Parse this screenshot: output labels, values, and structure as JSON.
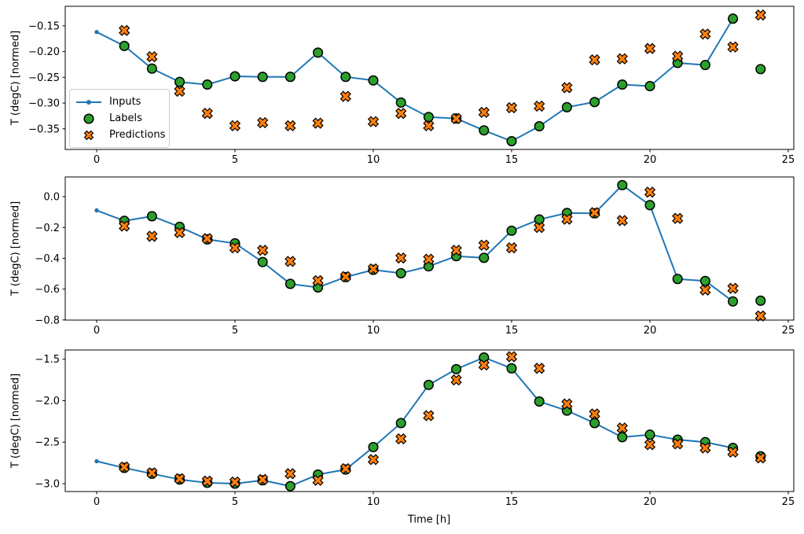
{
  "figure": {
    "xlabel": "Time [h]",
    "ylabel": "T (degC) [normed]",
    "colors": {
      "inputs": "#1f77b4",
      "labels": "#2ca02c",
      "predictions": "#ff7f0e",
      "marker_edge": "#000000",
      "legend_border": "#cccccc"
    },
    "legend": {
      "position": "upper-left-area of subplot 1",
      "items": [
        {
          "label": "Inputs",
          "marker": "line-with-dot"
        },
        {
          "label": "Labels",
          "marker": "filled-circle"
        },
        {
          "label": "Predictions",
          "marker": "filled-x"
        }
      ]
    }
  },
  "chart_data": [
    {
      "type": "line",
      "title": "",
      "xlabel": "",
      "ylabel": "T (degC) [normed]",
      "xlim": [
        -1.136,
        25.2
      ],
      "ylim": [
        -0.39,
        -0.112
      ],
      "grid": false,
      "xticks": [
        0,
        5,
        10,
        15,
        20,
        25
      ],
      "xtick_labels": [
        "0",
        "5",
        "10",
        "15",
        "20",
        "25"
      ],
      "yticks": [
        -0.15,
        -0.2,
        -0.25,
        -0.3,
        -0.35
      ],
      "ytick_labels": [
        "−0.15",
        "−0.20",
        "−0.25",
        "−0.30",
        "−0.35"
      ],
      "legend": [
        "Inputs",
        "Labels",
        "Predictions"
      ],
      "series": [
        {
          "name": "Inputs",
          "type": "line",
          "marker": "dot",
          "color": "#1f77b4",
          "x": [
            0,
            1,
            2,
            3,
            4,
            5,
            6,
            7,
            8,
            9,
            10,
            11,
            12,
            13,
            14,
            15,
            16,
            17,
            18,
            19,
            20,
            21,
            22,
            23
          ],
          "y": [
            -0.162,
            -0.189,
            -0.233,
            -0.259,
            -0.264,
            -0.248,
            -0.249,
            -0.249,
            -0.202,
            -0.249,
            -0.256,
            -0.299,
            -0.327,
            -0.33,
            -0.353,
            -0.374,
            -0.345,
            -0.308,
            -0.298,
            -0.264,
            -0.267,
            -0.222,
            -0.226,
            -0.136
          ]
        },
        {
          "name": "Labels",
          "type": "scatter",
          "marker": "circle",
          "color": "#2ca02c",
          "x": [
            1,
            2,
            3,
            4,
            5,
            6,
            7,
            8,
            9,
            10,
            11,
            12,
            13,
            14,
            15,
            16,
            17,
            18,
            19,
            20,
            21,
            22,
            23,
            24
          ],
          "y": [
            -0.189,
            -0.233,
            -0.259,
            -0.264,
            -0.248,
            -0.249,
            -0.249,
            -0.202,
            -0.249,
            -0.256,
            -0.299,
            -0.327,
            -0.33,
            -0.353,
            -0.374,
            -0.345,
            -0.308,
            -0.298,
            -0.264,
            -0.267,
            -0.222,
            -0.226,
            -0.136,
            -0.234
          ]
        },
        {
          "name": "Predictions",
          "type": "scatter",
          "marker": "X",
          "color": "#ff7f0e",
          "x": [
            1,
            2,
            3,
            4,
            5,
            6,
            7,
            8,
            9,
            10,
            11,
            12,
            13,
            14,
            15,
            16,
            17,
            18,
            19,
            20,
            21,
            22,
            23,
            24
          ],
          "y": [
            -0.159,
            -0.21,
            -0.277,
            -0.32,
            -0.344,
            -0.338,
            -0.344,
            -0.339,
            -0.287,
            -0.336,
            -0.32,
            -0.344,
            -0.33,
            -0.318,
            -0.309,
            -0.306,
            -0.27,
            -0.216,
            -0.214,
            -0.194,
            -0.209,
            -0.166,
            -0.191,
            -0.129
          ]
        }
      ]
    },
    {
      "type": "line",
      "title": "",
      "xlabel": "",
      "ylabel": "T (degC) [normed]",
      "xlim": [
        -1.136,
        25.2
      ],
      "ylim": [
        -0.801,
        0.128
      ],
      "grid": false,
      "xticks": [
        0,
        5,
        10,
        15,
        20,
        25
      ],
      "xtick_labels": [
        "0",
        "5",
        "10",
        "15",
        "20",
        "25"
      ],
      "yticks": [
        0.0,
        -0.2,
        -0.4,
        -0.6,
        -0.8
      ],
      "ytick_labels": [
        "0.0",
        "−0.2",
        "−0.4",
        "−0.6",
        "−0.8"
      ],
      "legend": [],
      "series": [
        {
          "name": "Inputs",
          "type": "line",
          "marker": "dot",
          "color": "#1f77b4",
          "x": [
            0,
            1,
            2,
            3,
            4,
            5,
            6,
            7,
            8,
            9,
            10,
            11,
            12,
            13,
            14,
            15,
            16,
            17,
            18,
            19,
            20,
            21,
            22,
            23
          ],
          "y": [
            -0.089,
            -0.157,
            -0.127,
            -0.196,
            -0.277,
            -0.303,
            -0.424,
            -0.566,
            -0.589,
            -0.522,
            -0.475,
            -0.497,
            -0.452,
            -0.386,
            -0.397,
            -0.221,
            -0.148,
            -0.106,
            -0.108,
            0.075,
            -0.055,
            -0.534,
            -0.547,
            -0.68
          ]
        },
        {
          "name": "Labels",
          "type": "scatter",
          "marker": "circle",
          "color": "#2ca02c",
          "x": [
            1,
            2,
            3,
            4,
            5,
            6,
            7,
            8,
            9,
            10,
            11,
            12,
            13,
            14,
            15,
            16,
            17,
            18,
            19,
            20,
            21,
            22,
            23,
            24
          ],
          "y": [
            -0.157,
            -0.127,
            -0.196,
            -0.277,
            -0.303,
            -0.424,
            -0.566,
            -0.589,
            -0.522,
            -0.475,
            -0.497,
            -0.452,
            -0.386,
            -0.397,
            -0.221,
            -0.148,
            -0.106,
            -0.108,
            0.075,
            -0.055,
            -0.534,
            -0.547,
            -0.68,
            -0.675
          ]
        },
        {
          "name": "Predictions",
          "type": "scatter",
          "marker": "X",
          "color": "#ff7f0e",
          "x": [
            1,
            2,
            3,
            4,
            5,
            6,
            7,
            8,
            9,
            10,
            11,
            12,
            13,
            14,
            15,
            16,
            17,
            18,
            19,
            20,
            21,
            22,
            23,
            24
          ],
          "y": [
            -0.191,
            -0.257,
            -0.233,
            -0.272,
            -0.332,
            -0.348,
            -0.42,
            -0.545,
            -0.519,
            -0.469,
            -0.398,
            -0.406,
            -0.348,
            -0.315,
            -0.332,
            -0.2,
            -0.146,
            -0.104,
            -0.155,
            0.029,
            -0.141,
            -0.606,
            -0.595,
            -0.774
          ]
        }
      ]
    },
    {
      "type": "line",
      "title": "",
      "xlabel": "Time [h]",
      "ylabel": "T (degC) [normed]",
      "xlim": [
        -1.136,
        25.2
      ],
      "ylim": [
        -3.095,
        -1.389
      ],
      "grid": false,
      "xticks": [
        0,
        5,
        10,
        15,
        20,
        25
      ],
      "xtick_labels": [
        "0",
        "5",
        "10",
        "15",
        "20",
        "25"
      ],
      "yticks": [
        -1.5,
        -2.0,
        -2.5,
        -3.0
      ],
      "ytick_labels": [
        "−1.5",
        "−2.0",
        "−2.5",
        "−3.0"
      ],
      "legend": [],
      "series": [
        {
          "name": "Inputs",
          "type": "line",
          "marker": "dot",
          "color": "#1f77b4",
          "x": [
            0,
            1,
            2,
            3,
            4,
            5,
            6,
            7,
            8,
            9,
            10,
            11,
            12,
            13,
            14,
            15,
            16,
            17,
            18,
            19,
            20,
            21,
            22,
            23
          ],
          "y": [
            -2.73,
            -2.81,
            -2.88,
            -2.95,
            -2.99,
            -3.0,
            -2.96,
            -3.03,
            -2.89,
            -2.83,
            -2.56,
            -2.27,
            -1.81,
            -1.62,
            -1.48,
            -1.61,
            -2.01,
            -2.12,
            -2.27,
            -2.44,
            -2.41,
            -2.47,
            -2.5,
            -2.57
          ]
        },
        {
          "name": "Labels",
          "type": "scatter",
          "marker": "circle",
          "color": "#2ca02c",
          "x": [
            1,
            2,
            3,
            4,
            5,
            6,
            7,
            8,
            9,
            10,
            11,
            12,
            13,
            14,
            15,
            16,
            17,
            18,
            19,
            20,
            21,
            22,
            23,
            24
          ],
          "y": [
            -2.81,
            -2.88,
            -2.95,
            -2.99,
            -3.0,
            -2.96,
            -3.03,
            -2.89,
            -2.83,
            -2.56,
            -2.27,
            -1.81,
            -1.62,
            -1.48,
            -1.61,
            -2.01,
            -2.12,
            -2.27,
            -2.44,
            -2.41,
            -2.47,
            -2.5,
            -2.57,
            -2.67
          ]
        },
        {
          "name": "Predictions",
          "type": "scatter",
          "marker": "X",
          "color": "#ff7f0e",
          "x": [
            1,
            2,
            3,
            4,
            5,
            6,
            7,
            8,
            9,
            10,
            11,
            12,
            13,
            14,
            15,
            16,
            17,
            18,
            19,
            20,
            21,
            22,
            23,
            24
          ],
          "y": [
            -2.8,
            -2.87,
            -2.94,
            -2.97,
            -2.98,
            -2.95,
            -2.88,
            -2.96,
            -2.82,
            -2.71,
            -2.46,
            -2.18,
            -1.75,
            -1.57,
            -1.47,
            -1.61,
            -2.04,
            -2.16,
            -2.33,
            -2.53,
            -2.52,
            -2.57,
            -2.62,
            -2.69
          ]
        }
      ]
    }
  ]
}
